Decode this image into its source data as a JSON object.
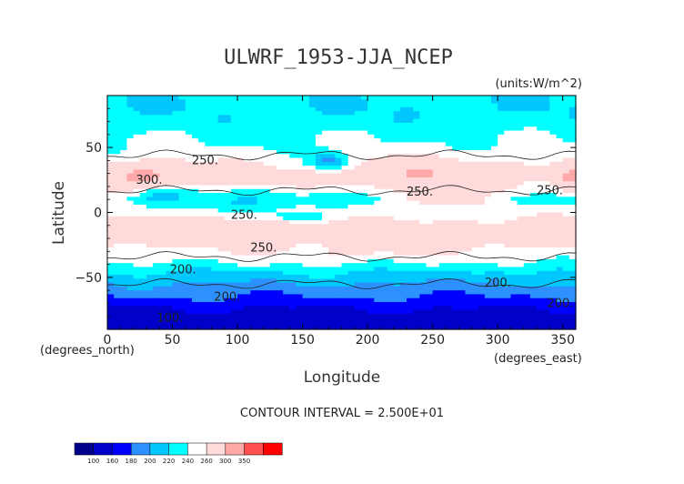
{
  "chart_data": {
    "type": "heatmap",
    "title": "ULWRF_1953-JJA_NCEP",
    "units": "(units:W/m^2)",
    "xlabel": "Longitude",
    "ylabel": "Latitude",
    "x_unit_label": "(degrees_east)",
    "y_unit_label": "(degrees_north)",
    "xlim": [
      0,
      360
    ],
    "ylim": [
      -90,
      90
    ],
    "x_ticks": [
      "0",
      "50",
      "100",
      "150",
      "200",
      "250",
      "300",
      "350"
    ],
    "y_ticks": [
      "50",
      "0",
      "−50"
    ],
    "contour_interval_text": "CONTOUR INTERVAL = 2.500E+01",
    "contour_labels": [
      {
        "text": "250.",
        "lon": 65,
        "lat": 37
      },
      {
        "text": "300.",
        "lon": 22,
        "lat": 22
      },
      {
        "text": "250.",
        "lon": 230,
        "lat": 13
      },
      {
        "text": "250.",
        "lon": 330,
        "lat": 14
      },
      {
        "text": "250.",
        "lon": 95,
        "lat": -5
      },
      {
        "text": "250.",
        "lon": 110,
        "lat": -30
      },
      {
        "text": "200.",
        "lon": 48,
        "lat": -47
      },
      {
        "text": "200.",
        "lon": 290,
        "lat": -57
      },
      {
        "text": "200.",
        "lon": 82,
        "lat": -68
      },
      {
        "text": "100.",
        "lon": 38,
        "lat": -84
      },
      {
        "text": "200.",
        "lon": 338,
        "lat": -73
      }
    ],
    "colorbar": {
      "ticks": [
        "100",
        "160",
        "180",
        "200",
        "220",
        "240",
        "260",
        "300",
        "350"
      ],
      "colors": [
        "#00008c",
        "#0000c8",
        "#0000ff",
        "#2d90ff",
        "#00c8ff",
        "#00ffff",
        "#ffffff",
        "#ffdada",
        "#ffa8a8",
        "#ff5050",
        "#ff0000"
      ]
    },
    "zonal_profile": [
      {
        "lat": 90,
        "value": 222
      },
      {
        "lat": 80,
        "value": 222
      },
      {
        "lat": 70,
        "value": 228
      },
      {
        "lat": 60,
        "value": 238
      },
      {
        "lat": 50,
        "value": 243
      },
      {
        "lat": 40,
        "value": 255
      },
      {
        "lat": 30,
        "value": 272
      },
      {
        "lat": 20,
        "value": 258
      },
      {
        "lat": 10,
        "value": 232
      },
      {
        "lat": 0,
        "value": 250
      },
      {
        "lat": -10,
        "value": 268
      },
      {
        "lat": -20,
        "value": 275
      },
      {
        "lat": -30,
        "value": 258
      },
      {
        "lat": -40,
        "value": 238
      },
      {
        "lat": -50,
        "value": 210
      },
      {
        "lat": -60,
        "value": 190
      },
      {
        "lat": -70,
        "value": 168
      },
      {
        "lat": -80,
        "value": 150
      },
      {
        "lat": -90,
        "value": 140
      }
    ],
    "features": [
      {
        "kind": "blob",
        "lon": 30,
        "lat": 28,
        "rlon": 35,
        "rlat": 9,
        "value": 310
      },
      {
        "kind": "blob",
        "lon": 245,
        "lat": 28,
        "rlon": 55,
        "rlat": 12,
        "value": 295
      },
      {
        "kind": "blob",
        "lon": 355,
        "lat": 26,
        "rlon": 8,
        "rlat": 8,
        "value": 310
      },
      {
        "kind": "blob",
        "lon": 170,
        "lat": 40,
        "rlon": 15,
        "rlat": 7,
        "value": 195
      },
      {
        "kind": "blob",
        "lon": 120,
        "lat": 10,
        "rlon": 80,
        "rlat": 7,
        "value": 225
      },
      {
        "kind": "blob",
        "lon": 100,
        "lat": -12,
        "rlon": 90,
        "rlat": 6,
        "value": 285
      },
      {
        "kind": "blob",
        "lon": 30,
        "lat": -14,
        "rlon": 20,
        "rlat": 6,
        "value": 295
      },
      {
        "kind": "blob",
        "lon": 150,
        "lat": -3,
        "rlon": 30,
        "rlat": 4,
        "value": 232
      },
      {
        "kind": "blob",
        "lon": 300,
        "lat": -52,
        "rlon": 10,
        "rlat": 7,
        "value": 190
      },
      {
        "kind": "blob",
        "lon": 40,
        "lat": 12,
        "rlon": 15,
        "rlat": 5,
        "value": 212
      },
      {
        "kind": "blob",
        "lon": 255,
        "lat": 10,
        "rlon": 35,
        "rlat": 6,
        "value": 280
      },
      {
        "kind": "blob",
        "lon": 200,
        "lat": -30,
        "rlon": 40,
        "rlat": 6,
        "value": 268
      }
    ]
  }
}
